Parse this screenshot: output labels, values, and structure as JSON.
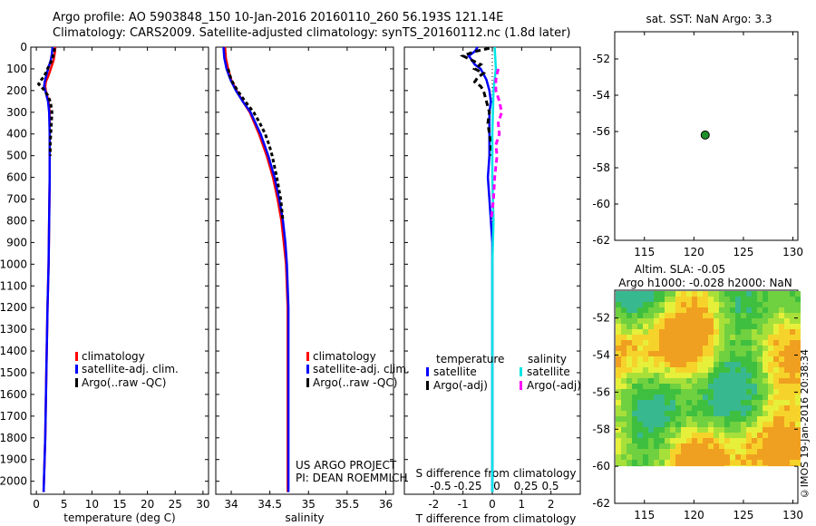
{
  "header": {
    "line1": "Argo profile: AO 5903848_150 10-Jan-2016 20160110_260 56.193S 121.14E",
    "line2": "Climatology: CARS2009. Satellite-adjusted climatology: synTS_20160112.nc (1.8d later)"
  },
  "colors": {
    "clim": "#ff0000",
    "sat": "#0000ff",
    "argo": "#000000",
    "sat_s": "#00e5e5",
    "argo_s": "#ff00ff"
  },
  "depth_ticks": [
    0,
    100,
    200,
    300,
    400,
    500,
    600,
    700,
    800,
    900,
    1000,
    1100,
    1200,
    1300,
    1400,
    1500,
    1600,
    1700,
    1800,
    1900,
    2000
  ],
  "chart_data": [
    {
      "type": "line",
      "name": "temperature",
      "xlabel": "temperature (deg C)",
      "ylabel": "depth",
      "xlim": [
        -1,
        31
      ],
      "ylim": [
        2060,
        0
      ],
      "xticks": [
        0,
        5,
        10,
        15,
        20,
        25,
        30
      ],
      "legend": [
        "climatology",
        "satellite-adj. clim.",
        "Argo(..raw -QC)"
      ],
      "series": [
        {
          "name": "climatology",
          "depth": [
            0,
            30,
            60,
            100,
            130,
            160,
            180,
            200,
            250,
            300,
            400,
            600,
            800,
            1000,
            1200,
            1500,
            1800,
            2050
          ],
          "values": [
            3.4,
            3.3,
            3.1,
            2.6,
            2.2,
            1.7,
            1.6,
            1.7,
            2.2,
            2.4,
            2.4,
            2.4,
            2.3,
            2.2,
            2.0,
            1.8,
            1.6,
            1.3
          ]
        },
        {
          "name": "satellite-adj. clim.",
          "depth": [
            0,
            30,
            60,
            100,
            130,
            160,
            180,
            200,
            250,
            300,
            400,
            600,
            800,
            1000,
            1200,
            1500,
            1800,
            2050
          ],
          "values": [
            2.9,
            2.8,
            2.6,
            2.1,
            1.8,
            1.5,
            1.4,
            1.6,
            2.1,
            2.3,
            2.4,
            2.4,
            2.3,
            2.2,
            2.0,
            1.8,
            1.6,
            1.3
          ]
        },
        {
          "name": "Argo(..raw -QC)",
          "depth": [
            5,
            20,
            40,
            60,
            80,
            100,
            120,
            140,
            160,
            170,
            180,
            200,
            220,
            250,
            280,
            300,
            350,
            400,
            450,
            500
          ],
          "values": [
            3.3,
            3.2,
            3.0,
            2.8,
            2.4,
            2.0,
            1.7,
            1.2,
            0.6,
            0.4,
            0.8,
            1.5,
            2.0,
            2.5,
            2.7,
            2.8,
            2.7,
            2.6,
            2.5,
            2.5
          ]
        }
      ]
    },
    {
      "type": "line",
      "name": "salinity",
      "xlabel": "salinity",
      "ylabel": "depth",
      "xlim": [
        33.8,
        36.1
      ],
      "ylim": [
        2060,
        0
      ],
      "xticks": [
        34,
        34.5,
        35,
        35.5,
        36
      ],
      "legend": [
        "climatology",
        "satellite-adj. clim.",
        "Argo(..raw -QC)"
      ],
      "series": [
        {
          "name": "climatology",
          "depth": [
            0,
            50,
            100,
            150,
            200,
            250,
            300,
            400,
            500,
            600,
            700,
            800,
            900,
            1000,
            1200,
            1500,
            1800,
            2050
          ],
          "values": [
            33.92,
            33.93,
            33.96,
            34.0,
            34.07,
            34.15,
            34.24,
            34.36,
            34.46,
            34.54,
            34.6,
            34.65,
            34.68,
            34.71,
            34.73,
            34.73,
            34.73,
            34.73
          ]
        },
        {
          "name": "satellite-adj. clim.",
          "depth": [
            0,
            50,
            100,
            150,
            200,
            250,
            300,
            400,
            500,
            600,
            700,
            800,
            900,
            1000,
            1200,
            1500,
            1800,
            2050
          ],
          "values": [
            33.9,
            33.91,
            33.94,
            33.99,
            34.06,
            34.15,
            34.25,
            34.38,
            34.48,
            34.56,
            34.62,
            34.67,
            34.7,
            34.72,
            34.74,
            34.74,
            34.74,
            34.74
          ]
        },
        {
          "name": "Argo(..raw -QC)",
          "depth": [
            100,
            150,
            200,
            250,
            300,
            350,
            400,
            450,
            500,
            600,
            700,
            800
          ],
          "values": [
            33.96,
            34.0,
            34.08,
            34.18,
            34.29,
            34.37,
            34.44,
            34.49,
            34.53,
            34.59,
            34.64,
            34.67
          ]
        }
      ]
    },
    {
      "type": "line",
      "name": "difference",
      "xlabel": "T difference from climatology",
      "xlabel_top": "S difference from climatology",
      "xlim": [
        -3,
        3
      ],
      "ylim": [
        2060,
        0
      ],
      "xticks": [
        -2,
        -1,
        0,
        1,
        2
      ],
      "sticks": [
        "-0.5",
        "-0.25",
        "0",
        "0.25",
        "0.5"
      ],
      "legend_heads": [
        "temperature",
        "salinity"
      ],
      "legend": [
        "satellite",
        "Argo(-adj)",
        "satellite",
        "Argo(-adj)"
      ],
      "series": [
        {
          "name": "T satellite",
          "depth": [
            0,
            20,
            40,
            80,
            100,
            150,
            200,
            250,
            300,
            400,
            500,
            600,
            700,
            800,
            900,
            1000,
            1500,
            2050
          ],
          "values": [
            -0.5,
            -0.6,
            -0.8,
            -0.6,
            -0.4,
            -0.2,
            -0.1,
            -0.05,
            -0.1,
            -0.1,
            -0.1,
            -0.15,
            -0.1,
            -0.05,
            0,
            0,
            0,
            0
          ]
        },
        {
          "name": "T Argo(-adj)",
          "depth": [
            5,
            20,
            40,
            60,
            80,
            100,
            120,
            140,
            160,
            180,
            200,
            250,
            300,
            350,
            400,
            450,
            500
          ],
          "values": [
            -0.1,
            -0.6,
            -1.0,
            -0.7,
            -0.4,
            -0.6,
            -0.3,
            -0.5,
            -0.6,
            -0.4,
            -0.3,
            -0.2,
            -0.1,
            -0.15,
            -0.1,
            -0.05,
            -0.05
          ]
        },
        {
          "name": "S satellite",
          "depth": [
            0,
            100,
            200,
            400,
            600,
            800,
            1000,
            1500,
            2050
          ],
          "values": [
            0.02,
            0.03,
            0.01,
            0.0,
            0.0,
            0.01,
            0.0,
            0.0,
            0.0
          ]
        },
        {
          "name": "S Argo(-adj)",
          "depth": [
            100,
            150,
            200,
            250,
            300,
            350,
            400,
            450,
            500,
            600,
            700,
            800
          ],
          "values": [
            0.05,
            0.03,
            0.03,
            0.06,
            0.08,
            0.05,
            0.06,
            0.03,
            0.04,
            0.02,
            0.01,
            -0.01
          ]
        }
      ]
    },
    {
      "type": "scatter",
      "name": "location map",
      "title": "sat. SST: NaN Argo: 3.3",
      "xlim": [
        112,
        130.5
      ],
      "ylim": [
        -62,
        -50.5
      ],
      "xticks": [
        115,
        120,
        125,
        130
      ],
      "yticks": [
        -52,
        -54,
        -56,
        -58,
        -60,
        -62
      ],
      "points": [
        {
          "x": 121.14,
          "y": -56.193
        }
      ]
    },
    {
      "type": "heatmap",
      "name": "altimetry",
      "title1": "Altim. SLA: -0.05",
      "title2": "Argo h1000: -0.028 h2000: NaN",
      "xlim": [
        112,
        130.5
      ],
      "ylim": [
        -62,
        -50.5
      ],
      "xticks": [
        115,
        120,
        125,
        130
      ],
      "yticks": [
        -52,
        -54,
        -56,
        -58,
        -60,
        -62
      ]
    }
  ],
  "notes": {
    "project": "US ARGO PROJECT",
    "pi": "PI: DEAN ROEMMICH",
    "stamp": "©IMOS 19-Jan-2016 20:38:34"
  }
}
